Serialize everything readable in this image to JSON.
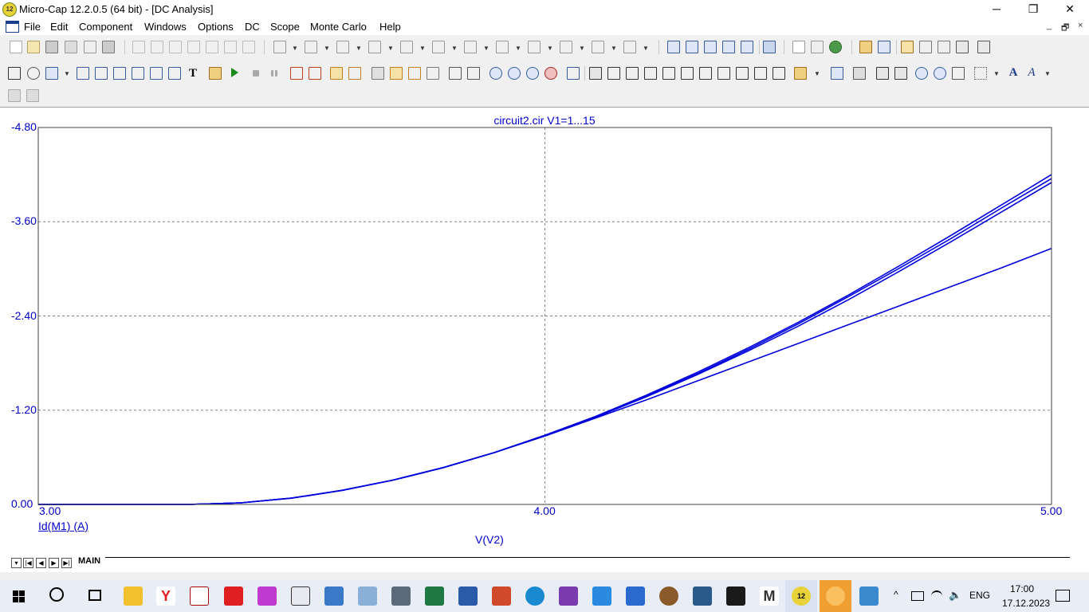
{
  "window": {
    "title": "Micro-Cap 12.2.0.5 (64 bit) - [DC Analysis]",
    "app_badge": "12",
    "controls": [
      "─",
      "❐",
      "✕"
    ],
    "mdi_controls": [
      "_",
      "🗗",
      "×"
    ]
  },
  "menu": [
    "File",
    "Edit",
    "Component",
    "Windows",
    "Options",
    "DC",
    "Scope",
    "Monte Carlo",
    "Help"
  ],
  "plot": {
    "title": "circuit2.cir V1=1...15",
    "y_expression": "Id(M1) (A)",
    "x_expression": "V(V2)",
    "y_ticks": [
      "-4.80",
      "-3.60",
      "-2.40",
      "-1.20",
      "0.00"
    ],
    "x_ticks": [
      "3.00",
      "4.00",
      "5.00"
    ],
    "trace_color": "#0000dd",
    "grid_color": "#808080"
  },
  "chart_data": {
    "type": "line",
    "title": "circuit2.cir V1=1...15",
    "xlabel": "V(V2)",
    "ylabel": "Id(M1) (A)",
    "xlim": [
      3.0,
      5.0
    ],
    "ylim": [
      0.0,
      -4.8
    ],
    "grid": true,
    "series": [
      {
        "values": [
          [
            3.0,
            0
          ],
          [
            3.2,
            0
          ],
          [
            3.3,
            0
          ],
          [
            3.4,
            -0.02
          ],
          [
            3.5,
            -0.08
          ],
          [
            3.6,
            -0.18
          ],
          [
            3.7,
            -0.31
          ],
          [
            3.8,
            -0.47
          ],
          [
            3.9,
            -0.66
          ],
          [
            4.0,
            -0.88
          ],
          [
            4.1,
            -1.12
          ],
          [
            4.2,
            -1.39
          ],
          [
            4.3,
            -1.68
          ],
          [
            4.4,
            -1.99
          ],
          [
            4.5,
            -2.32
          ],
          [
            4.6,
            -2.67
          ],
          [
            4.7,
            -3.04
          ],
          [
            4.8,
            -3.42
          ],
          [
            4.9,
            -3.81
          ],
          [
            5.0,
            -4.2
          ]
        ]
      },
      {
        "values": [
          [
            3.0,
            0
          ],
          [
            3.2,
            0
          ],
          [
            3.3,
            0
          ],
          [
            3.4,
            -0.02
          ],
          [
            3.5,
            -0.08
          ],
          [
            3.6,
            -0.18
          ],
          [
            3.7,
            -0.31
          ],
          [
            3.8,
            -0.47
          ],
          [
            3.9,
            -0.66
          ],
          [
            4.0,
            -0.88
          ],
          [
            4.1,
            -1.12
          ],
          [
            4.2,
            -1.38
          ],
          [
            4.3,
            -1.66
          ],
          [
            4.4,
            -1.97
          ],
          [
            4.5,
            -2.3
          ],
          [
            4.6,
            -2.65
          ],
          [
            4.7,
            -3.01
          ],
          [
            4.8,
            -3.38
          ],
          [
            4.9,
            -3.77
          ],
          [
            5.0,
            -4.15
          ]
        ]
      },
      {
        "values": [
          [
            3.0,
            0
          ],
          [
            3.2,
            0
          ],
          [
            3.3,
            0
          ],
          [
            3.4,
            -0.02
          ],
          [
            3.5,
            -0.08
          ],
          [
            3.6,
            -0.18
          ],
          [
            3.7,
            -0.31
          ],
          [
            3.8,
            -0.47
          ],
          [
            3.9,
            -0.66
          ],
          [
            4.0,
            -0.88
          ],
          [
            4.1,
            -1.11
          ],
          [
            4.2,
            -1.37
          ],
          [
            4.3,
            -1.65
          ],
          [
            4.4,
            -1.95
          ],
          [
            4.5,
            -2.27
          ],
          [
            4.6,
            -2.61
          ],
          [
            4.7,
            -2.97
          ],
          [
            4.8,
            -3.34
          ],
          [
            4.9,
            -3.72
          ],
          [
            5.0,
            -4.1
          ]
        ]
      },
      {
        "values": [
          [
            3.0,
            0
          ],
          [
            3.2,
            0
          ],
          [
            3.3,
            0
          ],
          [
            3.4,
            -0.02
          ],
          [
            3.5,
            -0.08
          ],
          [
            3.6,
            -0.18
          ],
          [
            3.7,
            -0.31
          ],
          [
            3.8,
            -0.47
          ],
          [
            3.9,
            -0.66
          ],
          [
            4.0,
            -0.87
          ],
          [
            4.1,
            -1.1
          ],
          [
            4.2,
            -1.33
          ],
          [
            4.3,
            -1.57
          ],
          [
            4.4,
            -1.81
          ],
          [
            4.5,
            -2.05
          ],
          [
            4.6,
            -2.29
          ],
          [
            4.7,
            -2.53
          ],
          [
            4.8,
            -2.77
          ],
          [
            4.9,
            -3.01
          ],
          [
            5.0,
            -3.26
          ]
        ]
      }
    ]
  },
  "tabs": {
    "main": "MAIN"
  },
  "taskbar": {
    "time": "17:00",
    "date": "17.12.2023",
    "lang": "ENG"
  }
}
